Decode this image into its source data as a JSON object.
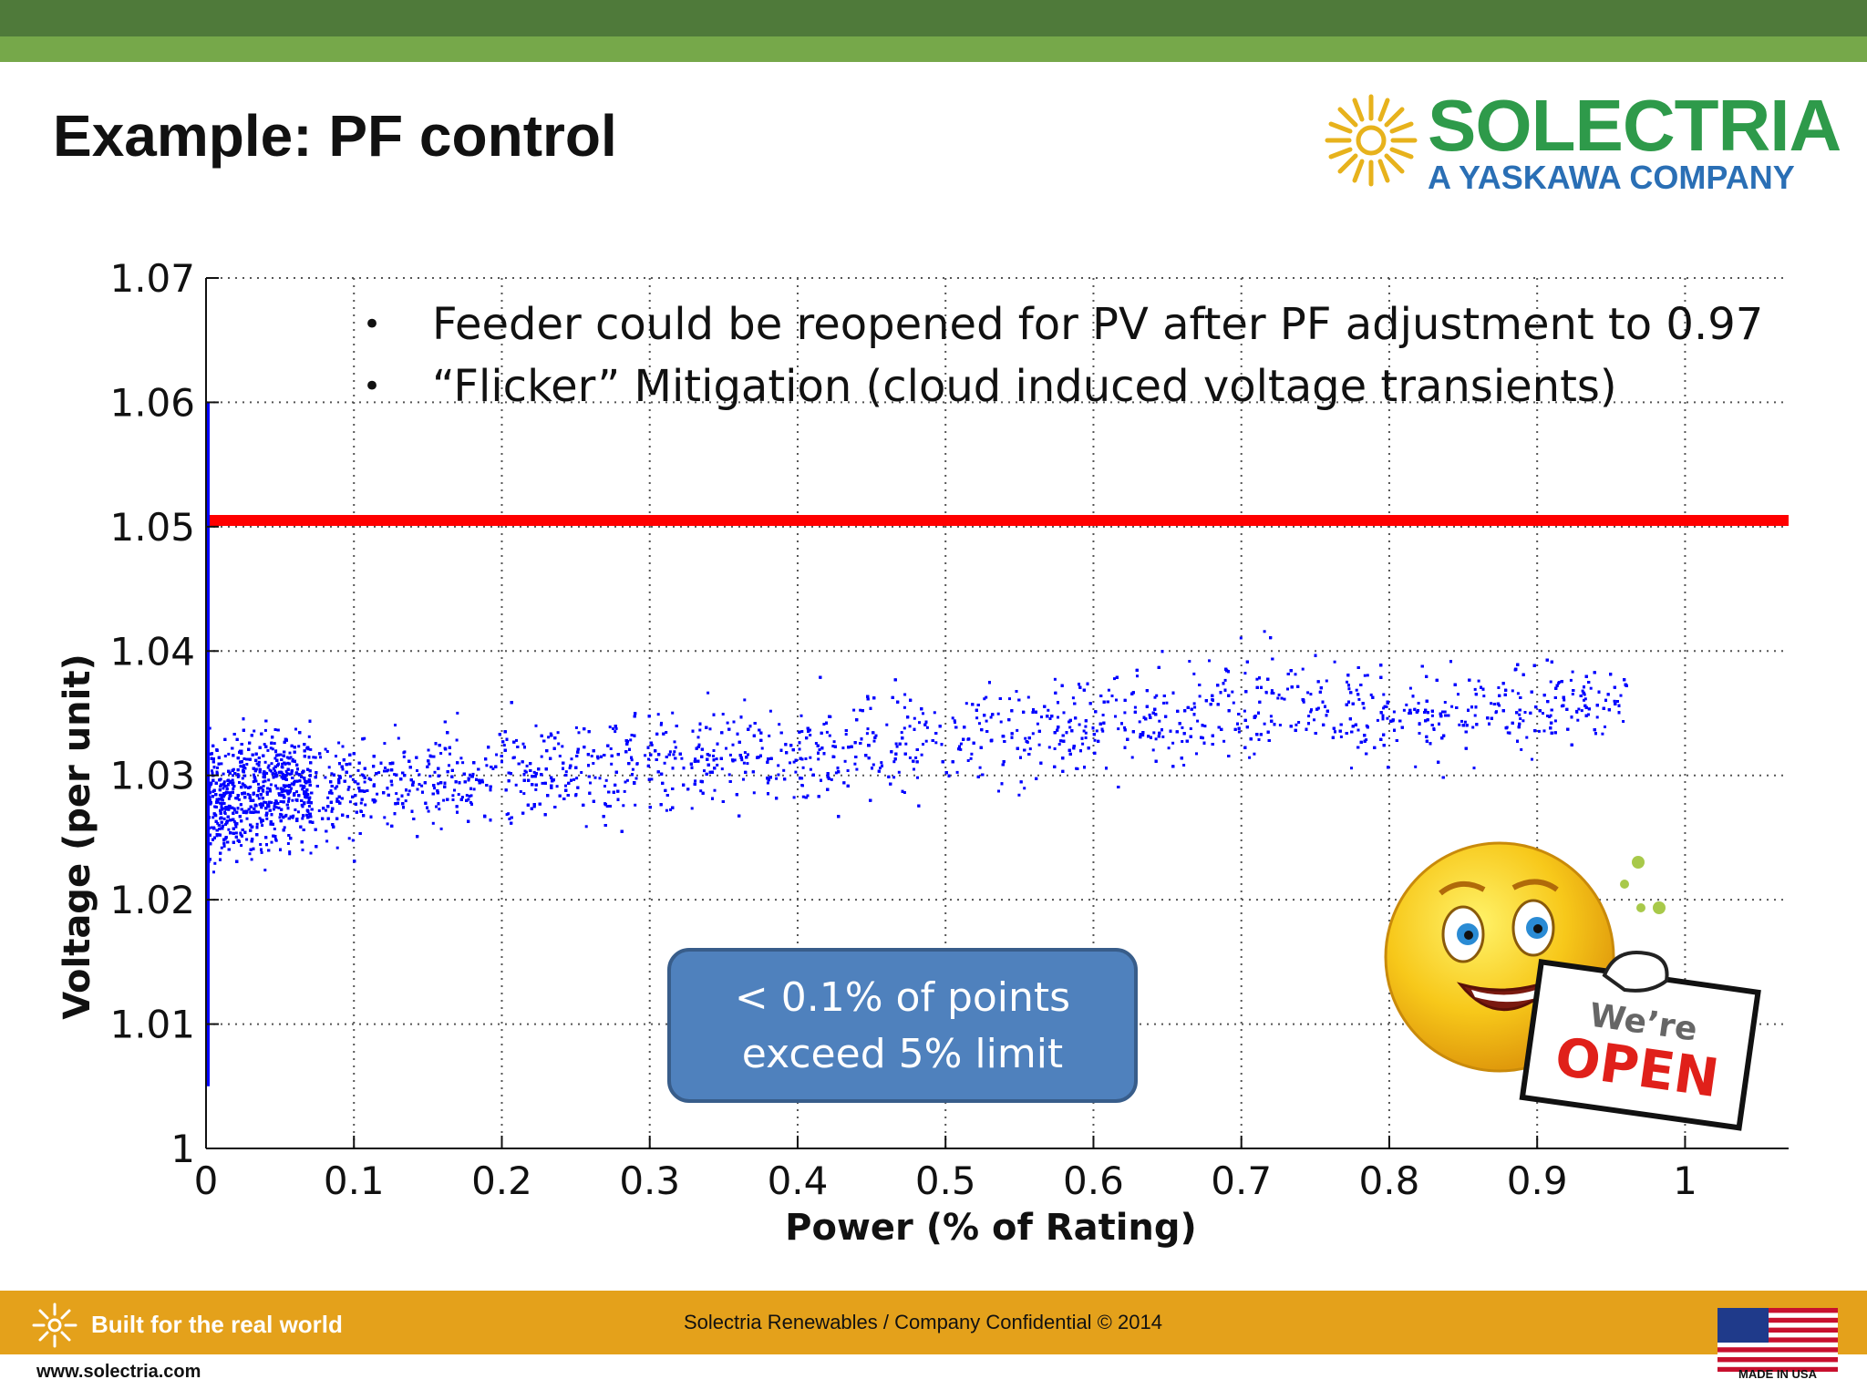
{
  "slide": {
    "title": "Example: PF control",
    "logo_name": "SOLECTRIA",
    "logo_tagline": "A YASKAWA COMPANY",
    "bullets": [
      "Feeder could be reopened for PV after PF adjustment to 0.97",
      "“Flicker” Mitigation (cloud induced voltage transients)"
    ],
    "callout": [
      "< 0.1% of points",
      "exceed 5% limit"
    ],
    "sign_line1": "We’re",
    "sign_line2": "OPEN",
    "footer_tagline": "Built for the real world",
    "footer_center": "Solectria Renewables / Company Confidential © 2014",
    "footer_url": "www.solectria.com",
    "flag_caption": "MADE IN USA"
  },
  "colors": {
    "header_dark": "#4f7a3a",
    "header_light": "#76a84a",
    "footer_bar": "#e4a11b",
    "points": "#0000ff",
    "limit_line": "#ff0000",
    "callout_fill": "#4f81bd"
  },
  "chart_data": {
    "type": "scatter",
    "title": "",
    "xlabel": "Power (% of Rating)",
    "ylabel": "Voltage (per unit)",
    "xlim": [
      0,
      1.07
    ],
    "ylim": [
      1.0,
      1.07
    ],
    "xticks": [
      0,
      0.1,
      0.2,
      0.3,
      0.4,
      0.5,
      0.6,
      0.7,
      0.8,
      0.9,
      1
    ],
    "xtick_labels": [
      "0",
      "0.1",
      "0.2",
      "0.3",
      "0.4",
      "0.5",
      "0.6",
      "0.7",
      "0.8",
      "0.9",
      "1"
    ],
    "yticks": [
      1.0,
      1.01,
      1.02,
      1.03,
      1.04,
      1.05,
      1.06,
      1.07
    ],
    "ytick_labels": [
      "1",
      "1.01",
      "1.02",
      "1.03",
      "1.04",
      "1.05",
      "1.06",
      "1.07"
    ],
    "grid": true,
    "limit_line": {
      "y": 1.0505
    },
    "vertical_line": {
      "x": 0.0,
      "y_range": [
        1.005,
        1.06
      ]
    },
    "point_cloud_envelope": [
      {
        "x": 0.0,
        "y_center": 1.028,
        "y_spread": 0.006
      },
      {
        "x": 0.05,
        "y_center": 1.029,
        "y_spread": 0.006
      },
      {
        "x": 0.1,
        "y_center": 1.029,
        "y_spread": 0.0055
      },
      {
        "x": 0.2,
        "y_center": 1.03,
        "y_spread": 0.005
      },
      {
        "x": 0.3,
        "y_center": 1.031,
        "y_spread": 0.005
      },
      {
        "x": 0.4,
        "y_center": 1.032,
        "y_spread": 0.005
      },
      {
        "x": 0.5,
        "y_center": 1.033,
        "y_spread": 0.005
      },
      {
        "x": 0.6,
        "y_center": 1.034,
        "y_spread": 0.005
      },
      {
        "x": 0.7,
        "y_center": 1.036,
        "y_spread": 0.0055
      },
      {
        "x": 0.8,
        "y_center": 1.035,
        "y_spread": 0.005
      },
      {
        "x": 0.9,
        "y_center": 1.036,
        "y_spread": 0.004
      },
      {
        "x": 0.95,
        "y_center": 1.036,
        "y_spread": 0.003
      }
    ]
  }
}
